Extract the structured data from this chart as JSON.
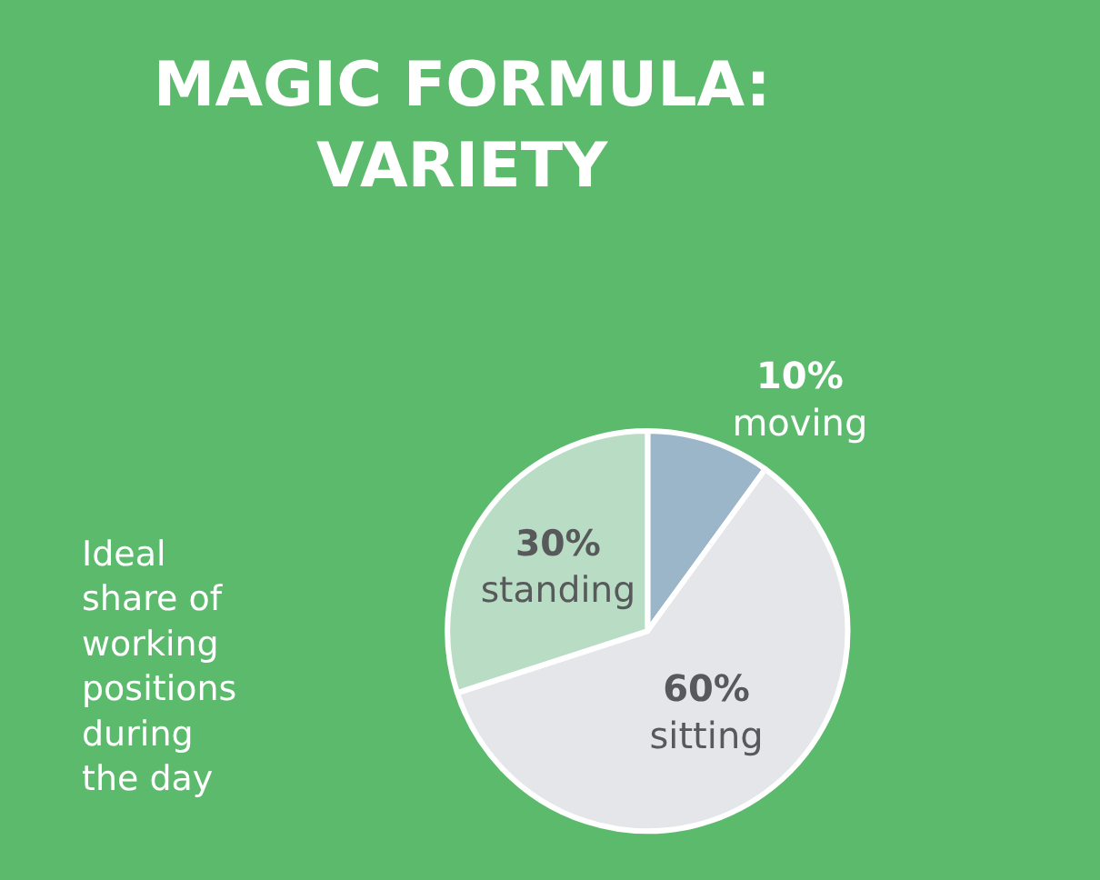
{
  "chart_data": {
    "type": "pie",
    "title": "MAGIC FORMULA:\nVARIETY",
    "annotations": [
      "Ideal share of working positions during the day"
    ],
    "categories": [
      "moving",
      "sitting",
      "standing"
    ],
    "values": [
      10,
      60,
      30
    ],
    "value_labels": [
      "10%",
      "60%",
      "30%"
    ],
    "colors": [
      "#9bb5c9",
      "#e4e6e9",
      "#b9dcc5"
    ],
    "legend": false
  }
}
